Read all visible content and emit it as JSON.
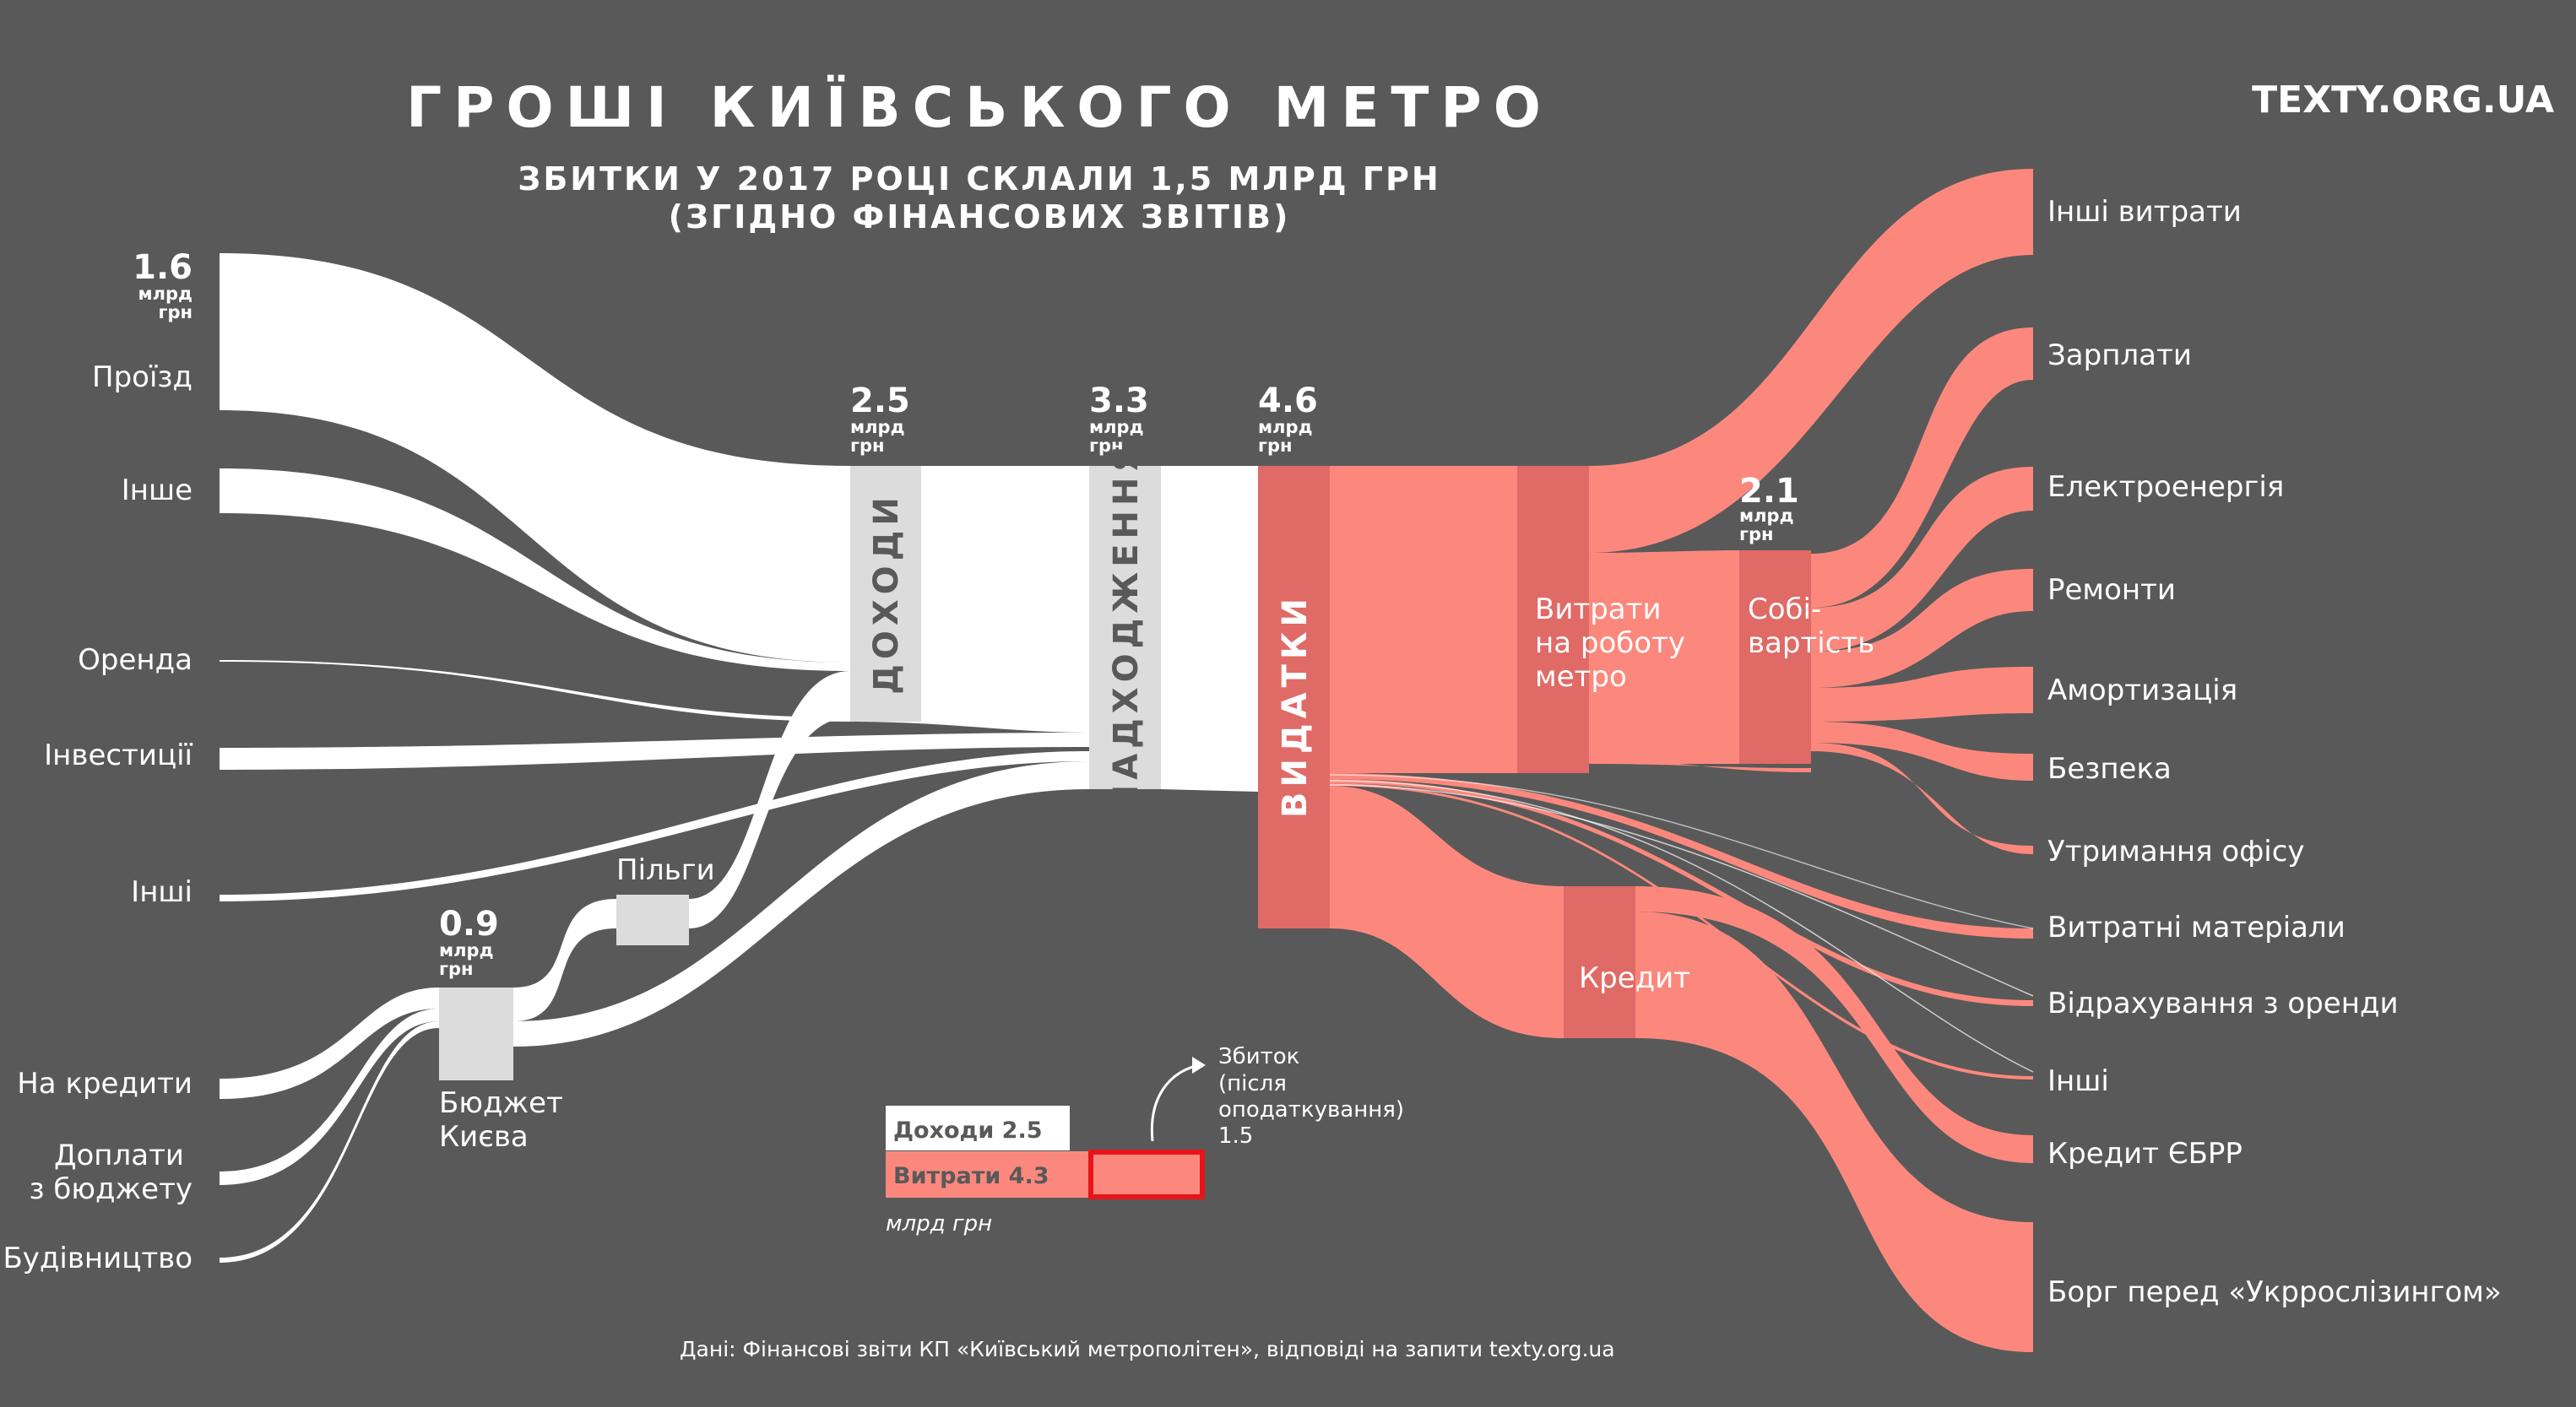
{
  "title": "ГРОШІ КИЇВСЬКОГО МЕТРО",
  "subtitle_line1": "ЗБИТКИ У 2017 РОЦІ СКЛАЛИ 1,5 МЛРД ГРН",
  "subtitle_line2": "(ЗГІДНО ФІНАНСОВИХ ЗВІТІВ)",
  "brand": "TEXTY.ORG.UA",
  "unit_line1": "млрд",
  "unit_line2": "грн",
  "sources": {
    "proizd": "Проїзд",
    "inshe": "Інше",
    "orenda": "Оренда",
    "investytsii": "Інвестиції",
    "inshi": "Інші",
    "na_kredyty": "На кредити",
    "doplaty_1": "Доплати",
    "doplaty_2": "з бюджету",
    "budivnytstvo": "Будівництво"
  },
  "values": {
    "proizd": "1.6",
    "dohody": "2.5",
    "nadhodzhennia": "3.3",
    "vydatky": "4.6",
    "sobivartist": "2.1",
    "biudzhet": "0.9"
  },
  "nodes": {
    "dohody": "ДОХОДИ",
    "nadhodzhennia": "НАДХОДЖЕННЯ",
    "vydatky": "ВИДАТКИ",
    "pilgy": "Пільги",
    "biudzhet_1": "Бюджет",
    "biudzhet_2": "Києва",
    "vytraty_1": "Витрати",
    "vytraty_2": "на роботу",
    "vytraty_3": "метро",
    "sobi_1": "Собі-",
    "sobi_2": "вартість",
    "kredyt": "Кредит"
  },
  "targets": {
    "inshi_vytraty": "Інші витрати",
    "zarplaty": "Зарплати",
    "elektro": "Електроенергія",
    "remonty": "Ремонти",
    "amortyzatsiia": "Амортизація",
    "bezpeka": "Безпека",
    "ofis": "Утримання офісу",
    "materialy": "Витратні матеріали",
    "vidrakhuvannia": "Відрахування з оренди",
    "inshi": "Інші",
    "kredyt_ebrr": "Кредит ЄБРР",
    "borh": "Борг перед «Укррослізингом»"
  },
  "legend": {
    "dohody": "Доходи 2.5",
    "vytraty": "Витрати 4.3",
    "loss_1": "Збиток",
    "loss_2": "(після",
    "loss_3": "оподаткування)",
    "loss_4": "1.5",
    "unit": "млрд грн"
  },
  "source_note": "Дані: Фінансові звіти КП «Київський метрополітен»,  відповіді на запити texty.org.ua",
  "colors": {
    "background": "#595959",
    "income": "#ffffff",
    "expense": "#fc887d",
    "expense_node": "#e06a66",
    "node": "#dcdcdc",
    "loss_border": "#e8141a"
  }
}
